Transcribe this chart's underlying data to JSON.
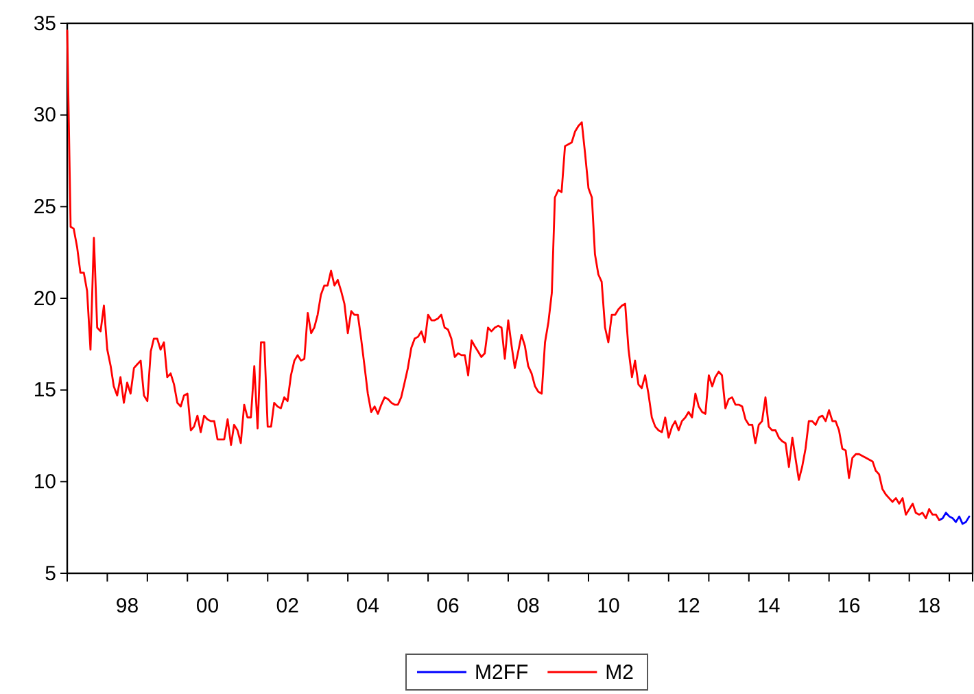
{
  "chart_data": {
    "type": "line",
    "x": [
      "1997-01",
      "1997-02",
      "1997-03",
      "1997-04",
      "1997-05",
      "1997-06",
      "1997-07",
      "1997-08",
      "1997-09",
      "1997-10",
      "1997-11",
      "1997-12",
      "1998-01",
      "1998-02",
      "1998-03",
      "1998-04",
      "1998-05",
      "1998-06",
      "1998-07",
      "1998-08",
      "1998-09",
      "1998-10",
      "1998-11",
      "1998-12",
      "1999-01",
      "1999-02",
      "1999-03",
      "1999-04",
      "1999-05",
      "1999-06",
      "1999-07",
      "1999-08",
      "1999-09",
      "1999-10",
      "1999-11",
      "1999-12",
      "2000-01",
      "2000-02",
      "2000-03",
      "2000-04",
      "2000-05",
      "2000-06",
      "2000-07",
      "2000-08",
      "2000-09",
      "2000-10",
      "2000-11",
      "2000-12",
      "2001-01",
      "2001-02",
      "2001-03",
      "2001-04",
      "2001-05",
      "2001-06",
      "2001-07",
      "2001-08",
      "2001-09",
      "2001-10",
      "2001-11",
      "2001-12",
      "2002-01",
      "2002-02",
      "2002-03",
      "2002-04",
      "2002-05",
      "2002-06",
      "2002-07",
      "2002-08",
      "2002-09",
      "2002-10",
      "2002-11",
      "2002-12",
      "2003-01",
      "2003-02",
      "2003-03",
      "2003-04",
      "2003-05",
      "2003-06",
      "2003-07",
      "2003-08",
      "2003-09",
      "2003-10",
      "2003-11",
      "2003-12",
      "2004-01",
      "2004-02",
      "2004-03",
      "2004-04",
      "2004-05",
      "2004-06",
      "2004-07",
      "2004-08",
      "2004-09",
      "2004-10",
      "2004-11",
      "2004-12",
      "2005-01",
      "2005-02",
      "2005-03",
      "2005-04",
      "2005-05",
      "2005-06",
      "2005-07",
      "2005-08",
      "2005-09",
      "2005-10",
      "2005-11",
      "2005-12",
      "2006-01",
      "2006-02",
      "2006-03",
      "2006-04",
      "2006-05",
      "2006-06",
      "2006-07",
      "2006-08",
      "2006-09",
      "2006-10",
      "2006-11",
      "2006-12",
      "2007-01",
      "2007-02",
      "2007-03",
      "2007-04",
      "2007-05",
      "2007-06",
      "2007-07",
      "2007-08",
      "2007-09",
      "2007-10",
      "2007-11",
      "2007-12",
      "2008-01",
      "2008-02",
      "2008-03",
      "2008-04",
      "2008-05",
      "2008-06",
      "2008-07",
      "2008-08",
      "2008-09",
      "2008-10",
      "2008-11",
      "2008-12",
      "2009-01",
      "2009-02",
      "2009-03",
      "2009-04",
      "2009-05",
      "2009-06",
      "2009-07",
      "2009-08",
      "2009-09",
      "2009-10",
      "2009-11",
      "2009-12",
      "2010-01",
      "2010-02",
      "2010-03",
      "2010-04",
      "2010-05",
      "2010-06",
      "2010-07",
      "2010-08",
      "2010-09",
      "2010-10",
      "2010-11",
      "2010-12",
      "2011-01",
      "2011-02",
      "2011-03",
      "2011-04",
      "2011-05",
      "2011-06",
      "2011-07",
      "2011-08",
      "2011-09",
      "2011-10",
      "2011-11",
      "2011-12",
      "2012-01",
      "2012-02",
      "2012-03",
      "2012-04",
      "2012-05",
      "2012-06",
      "2012-07",
      "2012-08",
      "2012-09",
      "2012-10",
      "2012-11",
      "2012-12",
      "2013-01",
      "2013-02",
      "2013-03",
      "2013-04",
      "2013-05",
      "2013-06",
      "2013-07",
      "2013-08",
      "2013-09",
      "2013-10",
      "2013-11",
      "2013-12",
      "2014-01",
      "2014-02",
      "2014-03",
      "2014-04",
      "2014-05",
      "2014-06",
      "2014-07",
      "2014-08",
      "2014-09",
      "2014-10",
      "2014-11",
      "2014-12",
      "2015-01",
      "2015-02",
      "2015-03",
      "2015-04",
      "2015-05",
      "2015-06",
      "2015-07",
      "2015-08",
      "2015-09",
      "2015-10",
      "2015-11",
      "2015-12",
      "2016-01",
      "2016-02",
      "2016-03",
      "2016-04",
      "2016-05",
      "2016-06",
      "2016-07",
      "2016-08",
      "2016-09",
      "2016-10",
      "2016-11",
      "2016-12",
      "2017-01",
      "2017-02",
      "2017-03",
      "2017-04",
      "2017-05",
      "2017-06",
      "2017-07",
      "2017-08",
      "2017-09",
      "2017-10",
      "2017-11",
      "2017-12",
      "2018-01",
      "2018-02",
      "2018-03",
      "2018-04",
      "2018-05",
      "2018-06",
      "2018-07",
      "2018-08",
      "2018-09",
      "2018-10",
      "2018-11",
      "2018-12",
      "2019-01",
      "2019-02",
      "2019-03",
      "2019-04",
      "2019-05",
      "2019-06",
      "2019-07"
    ],
    "series": [
      {
        "name": "M2FF",
        "color": "#0000ff",
        "values": [
          null,
          null,
          null,
          null,
          null,
          null,
          null,
          null,
          null,
          null,
          null,
          null,
          null,
          null,
          null,
          null,
          null,
          null,
          null,
          null,
          null,
          null,
          null,
          null,
          null,
          null,
          null,
          null,
          null,
          null,
          null,
          null,
          null,
          null,
          null,
          null,
          null,
          null,
          null,
          null,
          null,
          null,
          null,
          null,
          null,
          null,
          null,
          null,
          null,
          null,
          null,
          null,
          null,
          null,
          null,
          null,
          null,
          null,
          null,
          null,
          null,
          null,
          null,
          null,
          null,
          null,
          null,
          null,
          null,
          null,
          null,
          null,
          null,
          null,
          null,
          null,
          null,
          null,
          null,
          null,
          null,
          null,
          null,
          null,
          null,
          null,
          null,
          null,
          null,
          null,
          null,
          null,
          null,
          null,
          null,
          null,
          null,
          null,
          null,
          null,
          null,
          null,
          null,
          null,
          null,
          null,
          null,
          null,
          null,
          null,
          null,
          null,
          null,
          null,
          null,
          null,
          null,
          null,
          null,
          null,
          null,
          null,
          null,
          null,
          null,
          null,
          null,
          null,
          null,
          null,
          null,
          null,
          null,
          null,
          null,
          null,
          null,
          null,
          null,
          null,
          null,
          null,
          null,
          null,
          null,
          null,
          null,
          null,
          null,
          null,
          null,
          null,
          null,
          null,
          null,
          null,
          null,
          null,
          null,
          null,
          null,
          null,
          null,
          null,
          null,
          null,
          null,
          null,
          null,
          null,
          null,
          null,
          null,
          null,
          null,
          null,
          null,
          null,
          null,
          null,
          null,
          null,
          null,
          null,
          null,
          null,
          null,
          null,
          null,
          null,
          null,
          null,
          null,
          null,
          null,
          null,
          null,
          null,
          null,
          null,
          null,
          null,
          null,
          null,
          null,
          null,
          null,
          null,
          null,
          null,
          null,
          null,
          null,
          null,
          null,
          null,
          null,
          null,
          null,
          null,
          null,
          null,
          null,
          null,
          null,
          null,
          null,
          null,
          null,
          null,
          null,
          null,
          null,
          null,
          null,
          null,
          null,
          null,
          null,
          null,
          null,
          null,
          null,
          null,
          null,
          null,
          null,
          null,
          null,
          null,
          null,
          null,
          null,
          null,
          null,
          null,
          null,
          null,
          null,
          null,
          null,
          7.9,
          8.0,
          8.3,
          8.1,
          8.0,
          7.8,
          8.1,
          7.7,
          7.8,
          8.1
        ]
      },
      {
        "name": "M2",
        "color": "#ff0000",
        "values": [
          34.6,
          23.9,
          23.8,
          22.8,
          21.4,
          21.4,
          20.4,
          17.2,
          23.3,
          18.4,
          18.2,
          19.6,
          17.2,
          16.3,
          15.2,
          14.7,
          15.7,
          14.3,
          15.4,
          14.8,
          16.2,
          16.4,
          16.6,
          14.7,
          14.4,
          17.1,
          17.8,
          17.8,
          17.2,
          17.6,
          15.7,
          15.9,
          15.3,
          14.3,
          14.1,
          14.7,
          14.8,
          12.8,
          13.0,
          13.6,
          12.7,
          13.6,
          13.4,
          13.3,
          13.3,
          12.3,
          12.3,
          12.3,
          13.4,
          12.0,
          13.1,
          12.8,
          12.1,
          14.2,
          13.5,
          13.5,
          16.3,
          12.9,
          17.6,
          17.6,
          13.0,
          13.0,
          14.3,
          14.1,
          14.0,
          14.6,
          14.4,
          15.8,
          16.6,
          16.9,
          16.6,
          16.7,
          19.2,
          18.1,
          18.4,
          19.1,
          20.2,
          20.7,
          20.7,
          21.5,
          20.7,
          21.0,
          20.4,
          19.7,
          18.1,
          19.3,
          19.1,
          19.1,
          17.8,
          16.3,
          14.8,
          13.8,
          14.1,
          13.7,
          14.2,
          14.6,
          14.5,
          14.3,
          14.2,
          14.2,
          14.6,
          15.4,
          16.2,
          17.3,
          17.8,
          17.9,
          18.2,
          17.6,
          19.1,
          18.8,
          18.8,
          18.9,
          19.1,
          18.4,
          18.3,
          17.8,
          16.8,
          17.0,
          16.9,
          16.9,
          15.8,
          17.7,
          17.4,
          17.1,
          16.8,
          17.0,
          18.4,
          18.2,
          18.4,
          18.5,
          18.4,
          16.7,
          18.8,
          17.4,
          16.2,
          17.1,
          18.0,
          17.4,
          16.3,
          15.9,
          15.2,
          14.9,
          14.8,
          17.6,
          18.7,
          20.3,
          25.5,
          25.9,
          25.8,
          28.3,
          28.4,
          28.5,
          29.1,
          29.4,
          29.6,
          27.9,
          26.0,
          25.5,
          22.4,
          21.3,
          20.9,
          18.4,
          17.6,
          19.1,
          19.1,
          19.4,
          19.6,
          19.7,
          17.2,
          15.7,
          16.6,
          15.3,
          15.1,
          15.8,
          14.8,
          13.5,
          13.0,
          12.8,
          12.7,
          13.5,
          12.4,
          13.0,
          13.3,
          12.8,
          13.3,
          13.5,
          13.8,
          13.5,
          14.8,
          14.1,
          13.8,
          13.7,
          15.8,
          15.2,
          15.7,
          16.0,
          15.8,
          14.0,
          14.5,
          14.6,
          14.2,
          14.2,
          14.1,
          13.4,
          13.1,
          13.1,
          12.1,
          13.1,
          13.3,
          14.6,
          13.0,
          12.8,
          12.8,
          12.4,
          12.2,
          12.1,
          10.8,
          12.4,
          11.3,
          10.1,
          10.8,
          11.8,
          13.3,
          13.3,
          13.1,
          13.5,
          13.6,
          13.3,
          13.9,
          13.3,
          13.3,
          12.8,
          11.8,
          11.7,
          10.2,
          11.3,
          11.5,
          11.5,
          11.4,
          11.3,
          11.2,
          11.1,
          10.6,
          10.4,
          9.6,
          9.3,
          9.1,
          8.9,
          9.1,
          8.8,
          9.1,
          8.2,
          8.5,
          8.8,
          8.3,
          8.2,
          8.3,
          8.0,
          8.5,
          8.2,
          8.2,
          7.9,
          null,
          null,
          null,
          null,
          null,
          null,
          null,
          null,
          null
        ]
      }
    ],
    "xlim": [
      "1997-01",
      "2019-08"
    ],
    "xticks": [
      {
        "value": "1997-01",
        "label": null
      },
      {
        "value": "1998-01",
        "label": null
      },
      {
        "value": "1998-07",
        "label": "98"
      },
      {
        "value": "1999-01",
        "label": null
      },
      {
        "value": "2000-01",
        "label": null
      },
      {
        "value": "2000-07",
        "label": "00"
      },
      {
        "value": "2001-01",
        "label": null
      },
      {
        "value": "2002-01",
        "label": null
      },
      {
        "value": "2002-07",
        "label": "02"
      },
      {
        "value": "2003-01",
        "label": null
      },
      {
        "value": "2004-01",
        "label": null
      },
      {
        "value": "2004-07",
        "label": "04"
      },
      {
        "value": "2005-01",
        "label": null
      },
      {
        "value": "2006-01",
        "label": null
      },
      {
        "value": "2006-07",
        "label": "06"
      },
      {
        "value": "2007-01",
        "label": null
      },
      {
        "value": "2008-01",
        "label": null
      },
      {
        "value": "2008-07",
        "label": "08"
      },
      {
        "value": "2009-01",
        "label": null
      },
      {
        "value": "2010-01",
        "label": null
      },
      {
        "value": "2010-07",
        "label": "10"
      },
      {
        "value": "2011-01",
        "label": null
      },
      {
        "value": "2012-01",
        "label": null
      },
      {
        "value": "2012-07",
        "label": "12"
      },
      {
        "value": "2013-01",
        "label": null
      },
      {
        "value": "2014-01",
        "label": null
      },
      {
        "value": "2014-07",
        "label": "14"
      },
      {
        "value": "2015-01",
        "label": null
      },
      {
        "value": "2016-01",
        "label": null
      },
      {
        "value": "2016-07",
        "label": "16"
      },
      {
        "value": "2017-01",
        "label": null
      },
      {
        "value": "2018-01",
        "label": null
      },
      {
        "value": "2018-07",
        "label": "18"
      },
      {
        "value": "2019-01",
        "label": null
      }
    ],
    "ylim": [
      5,
      35
    ],
    "yticks": [
      5,
      10,
      15,
      20,
      25,
      30,
      35
    ],
    "grid": false,
    "legend": "bottom",
    "line_style": "solid"
  }
}
